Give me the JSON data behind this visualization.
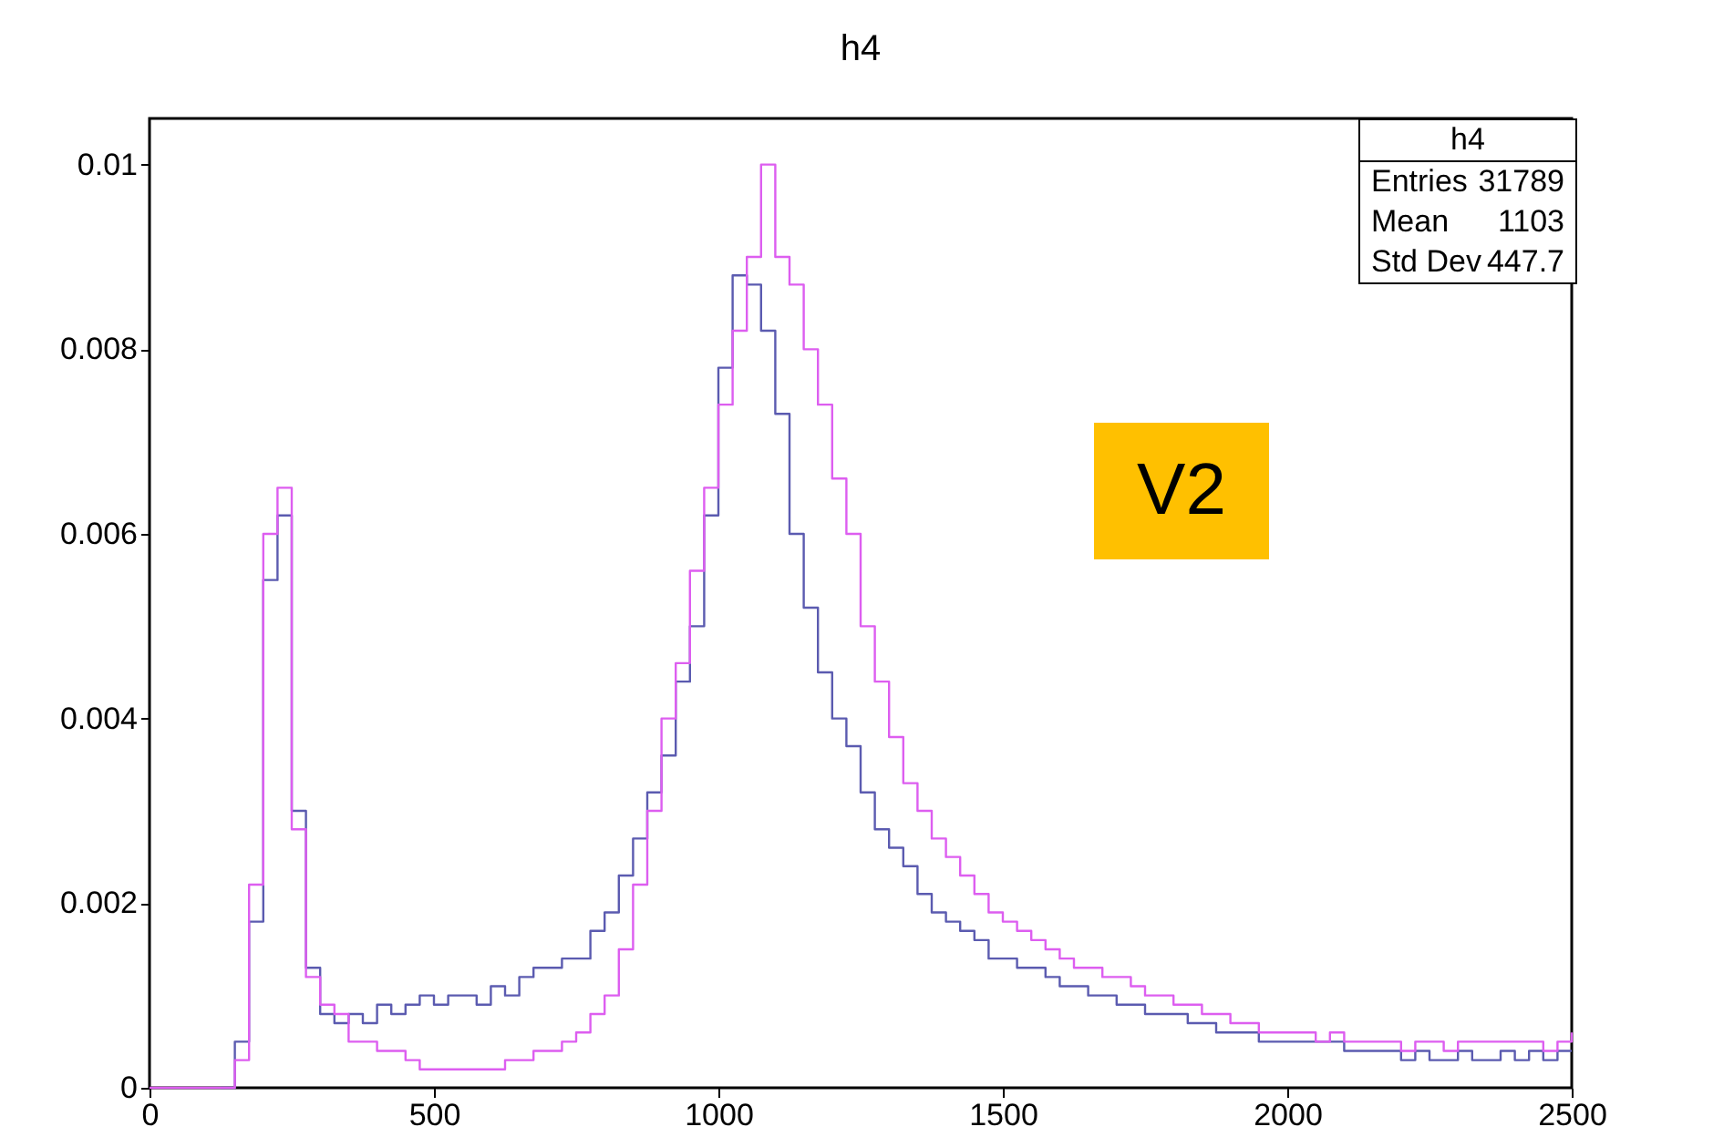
{
  "chart_data": {
    "type": "step",
    "title": "h4",
    "annotations": [
      "h4",
      "Entries",
      "31789",
      "Mean",
      "1103",
      "Std Dev",
      "447.7",
      "V2"
    ],
    "x": [
      0,
      25,
      50,
      75,
      100,
      125,
      150,
      175,
      200,
      225,
      250,
      275,
      300,
      325,
      350,
      375,
      400,
      425,
      450,
      475,
      500,
      525,
      550,
      575,
      600,
      625,
      650,
      675,
      700,
      725,
      750,
      775,
      800,
      825,
      850,
      875,
      900,
      925,
      950,
      975,
      1000,
      1025,
      1050,
      1075,
      1100,
      1125,
      1150,
      1175,
      1200,
      1225,
      1250,
      1275,
      1300,
      1325,
      1350,
      1375,
      1400,
      1425,
      1450,
      1475,
      1500,
      1525,
      1550,
      1575,
      1600,
      1625,
      1650,
      1675,
      1700,
      1725,
      1750,
      1775,
      1800,
      1825,
      1850,
      1875,
      1900,
      1925,
      1950,
      1975,
      2000,
      2025,
      2050,
      2075,
      2100,
      2125,
      2150,
      2175,
      2200,
      2225,
      2250,
      2275,
      2300,
      2325,
      2350,
      2375,
      2400,
      2425,
      2450,
      2475,
      2500
    ],
    "series": [
      {
        "color": "#5b5bb0",
        "values": [
          null,
          null,
          null,
          null,
          null,
          0,
          0.0005,
          0.0018,
          0.0055,
          0.0062,
          0.003,
          0.0013,
          0.0008,
          0.0007,
          0.0008,
          0.0007,
          0.0009,
          0.0008,
          0.0009,
          0.001,
          0.0009,
          0.001,
          0.001,
          0.0009,
          0.0011,
          0.001,
          0.0012,
          0.0013,
          0.0013,
          0.0014,
          0.0014,
          0.0017,
          0.0019,
          0.0023,
          0.0027,
          0.0032,
          0.0036,
          0.0044,
          0.005,
          0.0062,
          0.0078,
          0.0088,
          0.0087,
          0.0082,
          0.0073,
          0.006,
          0.0052,
          0.0045,
          0.004,
          0.0037,
          0.0032,
          0.0028,
          0.0026,
          0.0024,
          0.0021,
          0.0019,
          0.0018,
          0.0017,
          0.0016,
          0.0014,
          0.0014,
          0.0013,
          0.0013,
          0.0012,
          0.0011,
          0.0011,
          0.001,
          0.001,
          0.0009,
          0.0009,
          0.0008,
          0.0008,
          0.0008,
          0.0007,
          0.0007,
          0.0006,
          0.0006,
          0.0006,
          0.0005,
          0.0005,
          0.0005,
          0.0005,
          0.0005,
          0.0005,
          0.0004,
          0.0004,
          0.0004,
          0.0004,
          0.0003,
          0.0004,
          0.0003,
          0.0003,
          0.0004,
          0.0003,
          0.0003,
          0.0004,
          0.0003,
          0.0004,
          0.0003,
          0.0004,
          0.0004
        ]
      },
      {
        "color": "#dd5ef0",
        "values": [
          0,
          0,
          0,
          0,
          0,
          0,
          0.0003,
          0.0022,
          0.006,
          0.0065,
          0.0028,
          0.0012,
          0.0009,
          0.0008,
          0.0005,
          0.0005,
          0.0004,
          0.0004,
          0.0003,
          0.0002,
          0.0002,
          0.0002,
          0.0002,
          0.0002,
          0.0002,
          0.0003,
          0.0003,
          0.0004,
          0.0004,
          0.0005,
          0.0006,
          0.0008,
          0.001,
          0.0015,
          0.0022,
          0.003,
          0.004,
          0.0046,
          0.0056,
          0.0065,
          0.0074,
          0.0082,
          0.009,
          0.01,
          0.009,
          0.0087,
          0.008,
          0.0074,
          0.0066,
          0.006,
          0.005,
          0.0044,
          0.0038,
          0.0033,
          0.003,
          0.0027,
          0.0025,
          0.0023,
          0.0021,
          0.0019,
          0.0018,
          0.0017,
          0.0016,
          0.0015,
          0.0014,
          0.0013,
          0.0013,
          0.0012,
          0.0012,
          0.0011,
          0.001,
          0.001,
          0.0009,
          0.0009,
          0.0008,
          0.0008,
          0.0007,
          0.0007,
          0.0006,
          0.0006,
          0.0006,
          0.0006,
          0.0005,
          0.0006,
          0.0005,
          0.0005,
          0.0005,
          0.0005,
          0.0004,
          0.0005,
          0.0005,
          0.0004,
          0.0005,
          0.0005,
          0.0005,
          0.0005,
          0.0005,
          0.0005,
          0.0004,
          0.0005,
          0.0006
        ]
      }
    ],
    "xlim": [
      0,
      2500
    ],
    "xticks": [
      0,
      500,
      1000,
      1500,
      2000,
      2500
    ],
    "ylim": [
      0,
      0.0105
    ],
    "yticks": [
      0,
      0.002,
      0.004,
      0.006,
      0.008,
      0.01
    ],
    "grid": false,
    "legend": false
  }
}
